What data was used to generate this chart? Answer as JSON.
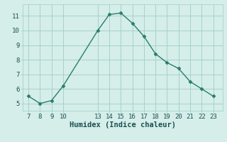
{
  "x": [
    7,
    8,
    9,
    10,
    13,
    14,
    15,
    16,
    17,
    18,
    19,
    20,
    21,
    22,
    23
  ],
  "y": [
    5.5,
    5.0,
    5.2,
    6.2,
    10.0,
    11.1,
    11.2,
    10.5,
    9.6,
    8.4,
    7.8,
    7.4,
    6.5,
    6.0,
    5.5
  ],
  "xlabel": "Humidex (Indice chaleur)",
  "xticks": [
    7,
    8,
    9,
    10,
    13,
    14,
    15,
    16,
    17,
    18,
    19,
    20,
    21,
    22,
    23
  ],
  "yticks": [
    5,
    6,
    7,
    8,
    9,
    10,
    11
  ],
  "ylim": [
    4.5,
    11.8
  ],
  "xlim": [
    6.5,
    23.8
  ],
  "line_color": "#2a7d6e",
  "marker": "D",
  "marker_size": 2.5,
  "bg_color": "#d5eeea",
  "grid_color": "#a0ccc6",
  "xlabel_fontsize": 7.5,
  "tick_fontsize": 6.5
}
